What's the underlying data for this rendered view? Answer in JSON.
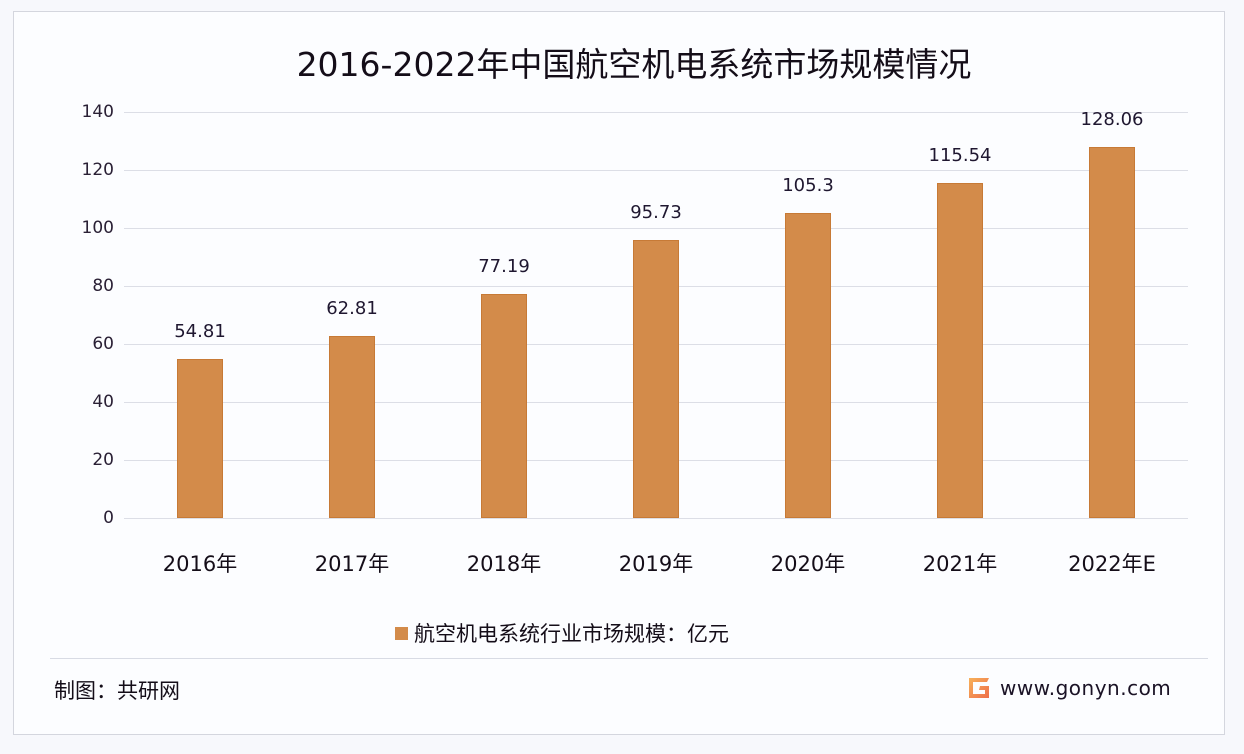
{
  "chart_data": {
    "type": "bar",
    "title": "2016-2022年中国航空机电系统市场规模情况",
    "categories": [
      "2016年",
      "2017年",
      "2018年",
      "2019年",
      "2020年",
      "2021年",
      "2022年E"
    ],
    "series": [
      {
        "name": "航空机电系统行业市场规模：亿元",
        "values": [
          54.81,
          62.81,
          77.19,
          95.73,
          105.3,
          115.54,
          128.06
        ],
        "labels": [
          "54.81",
          "62.81",
          "77.19",
          "95.73",
          "105.3",
          "115.54",
          "128.06"
        ],
        "color": "#d38b4a"
      }
    ],
    "xlabel": "",
    "ylabel": "",
    "ylim": [
      0,
      140
    ],
    "yticks": [
      "0",
      "20",
      "40",
      "60",
      "80",
      "100",
      "120",
      "140"
    ],
    "grid": true,
    "legend_position": "bottom"
  },
  "footer": {
    "source": "制图：共研网",
    "brand_url": "www.gonyn.com",
    "brand_logo_icon": "gonyn-logo-icon"
  },
  "colors": {
    "bar": "#d38b4a",
    "grid": "#dcdee6",
    "text": "#140d18",
    "logo_gradient_start": "#f7b15a",
    "logo_gradient_end": "#ee6f4a"
  }
}
